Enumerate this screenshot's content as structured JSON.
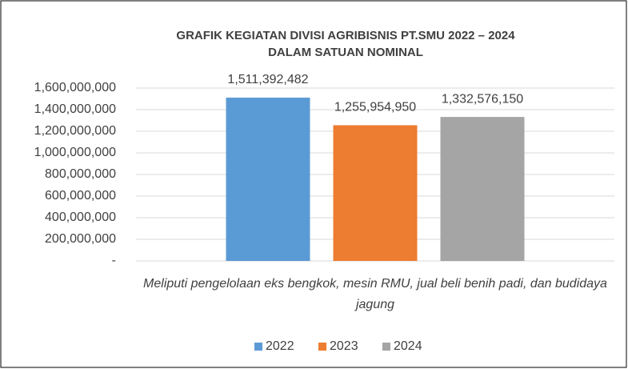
{
  "chart_data": {
    "type": "bar",
    "title": "GRAFIK KEGIATAN DIVISI AGRIBISNIS PT.SMU 2022 – 2024",
    "subtitle": "DALAM SATUAN NOMINAL",
    "categories": [
      "Meliputi pengelolaan eks bengkok, mesin RMU, jual beli benih padi, dan budidaya jagung"
    ],
    "series": [
      {
        "name": "2022",
        "color": "#5b9bd5",
        "values": [
          1511392482
        ],
        "value_labels": [
          "1,511,392,482"
        ]
      },
      {
        "name": "2023",
        "color": "#ed7d31",
        "values": [
          1255954950
        ],
        "value_labels": [
          "1,255,954,950"
        ]
      },
      {
        "name": "2024",
        "color": "#a5a5a5",
        "values": [
          1332576150
        ],
        "value_labels": [
          "1,332,576,150"
        ]
      }
    ],
    "ylim": [
      0,
      1600000000
    ],
    "yticks": [
      {
        "value": 0,
        "label": "-"
      },
      {
        "value": 200000000,
        "label": "200,000,000"
      },
      {
        "value": 400000000,
        "label": "400,000,000"
      },
      {
        "value": 600000000,
        "label": "600,000,000"
      },
      {
        "value": 800000000,
        "label": "800,000,000"
      },
      {
        "value": 1000000000,
        "label": "1,000,000,000"
      },
      {
        "value": 1200000000,
        "label": "1,200,000,000"
      },
      {
        "value": 1400000000,
        "label": "1,400,000,000"
      },
      {
        "value": 1600000000,
        "label": "1,600,000,000"
      }
    ],
    "grid": true,
    "legend": "bottom"
  }
}
